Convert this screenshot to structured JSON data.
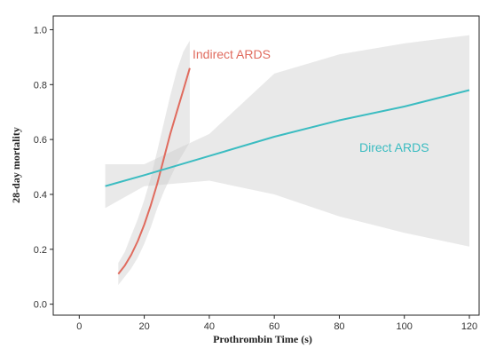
{
  "chart_data": {
    "type": "line",
    "xlabel": "Prothrombin Time (s)",
    "ylabel": "28-day mortality",
    "xlim": [
      -8,
      123
    ],
    "ylim": [
      -0.04,
      1.05
    ],
    "xticks": [
      0,
      20,
      40,
      60,
      80,
      100,
      120
    ],
    "yticks": [
      0.0,
      0.2,
      0.4,
      0.6,
      0.8,
      1.0
    ],
    "xtick_labels": [
      "0",
      "20",
      "40",
      "60",
      "80",
      "100",
      "120"
    ],
    "ytick_labels": [
      "0.0",
      "0.2",
      "0.4",
      "0.6",
      "0.8",
      "1.0"
    ],
    "grid": false,
    "series": [
      {
        "name": "Indirect ARDS",
        "color": "#e06b5e",
        "x": [
          12,
          14,
          16,
          18,
          20,
          22,
          24,
          26,
          28,
          30,
          32,
          34
        ],
        "y": [
          0.11,
          0.14,
          0.18,
          0.23,
          0.29,
          0.36,
          0.44,
          0.53,
          0.62,
          0.7,
          0.78,
          0.86
        ],
        "ci_lower": [
          0.07,
          0.1,
          0.13,
          0.17,
          0.22,
          0.28,
          0.35,
          0.41,
          0.46,
          0.51,
          0.55,
          0.59
        ],
        "ci_upper": [
          0.15,
          0.19,
          0.25,
          0.31,
          0.38,
          0.46,
          0.56,
          0.66,
          0.76,
          0.85,
          0.92,
          0.96
        ]
      },
      {
        "name": "Direct ARDS",
        "color": "#3bbcc1",
        "x": [
          8,
          20,
          40,
          60,
          80,
          100,
          120
        ],
        "y": [
          0.43,
          0.47,
          0.54,
          0.61,
          0.67,
          0.72,
          0.78
        ],
        "ci_lower": [
          0.35,
          0.43,
          0.45,
          0.4,
          0.32,
          0.26,
          0.21
        ],
        "ci_upper": [
          0.51,
          0.51,
          0.62,
          0.84,
          0.91,
          0.95,
          0.98
        ]
      }
    ]
  }
}
